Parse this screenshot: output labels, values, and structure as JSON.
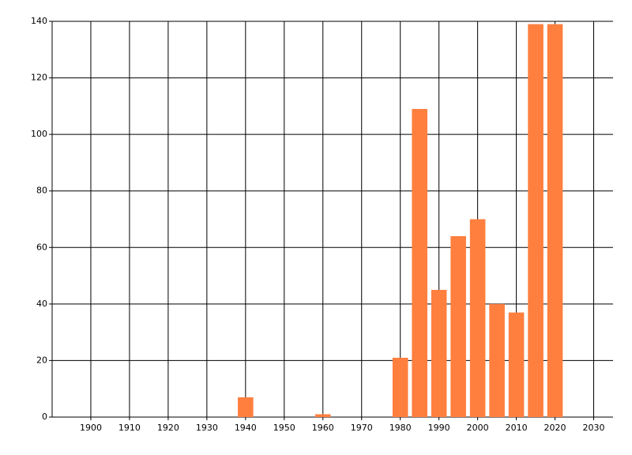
{
  "chart_data": {
    "type": "bar",
    "x": [
      1940,
      1960,
      1980,
      1985,
      1990,
      1995,
      2000,
      2005,
      2010,
      2015,
      2020
    ],
    "values": [
      7,
      1,
      21,
      109,
      45,
      64,
      70,
      40,
      37,
      139,
      139
    ],
    "color": "#ff7f3f",
    "xlim": [
      1890,
      2035
    ],
    "xticks": [
      1900,
      1910,
      1920,
      1930,
      1940,
      1950,
      1960,
      1970,
      1980,
      1990,
      2000,
      2010,
      2020,
      2030
    ],
    "ylim": [
      0,
      140
    ],
    "yticks": [
      0,
      20,
      40,
      60,
      80,
      100,
      120,
      140
    ],
    "grid": true
  }
}
